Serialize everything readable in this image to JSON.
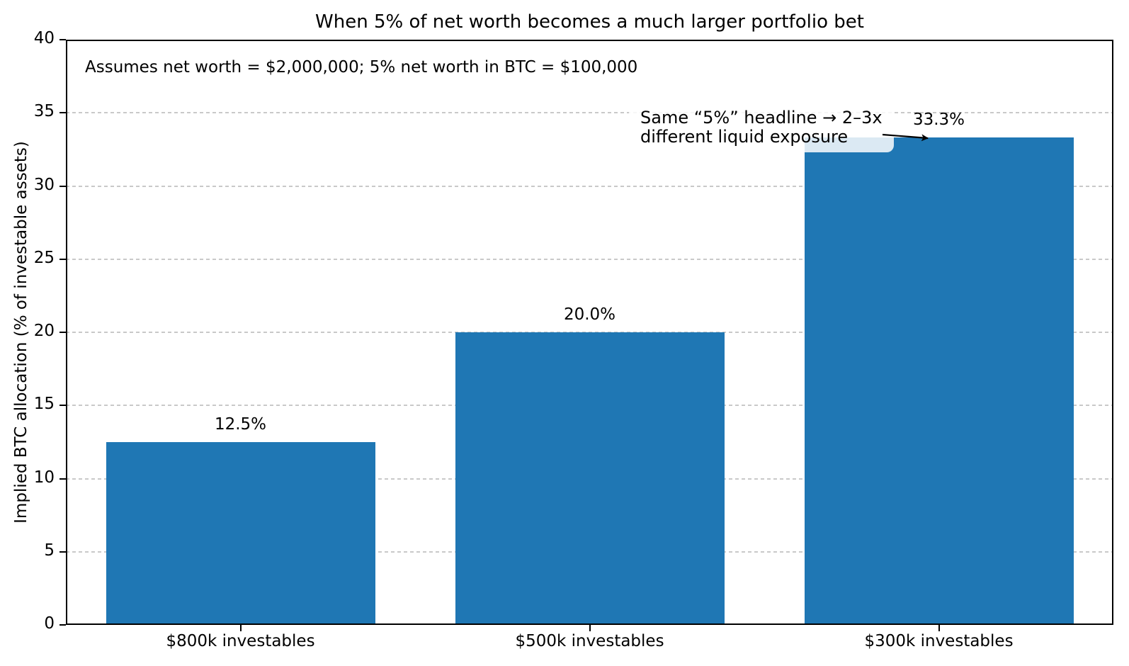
{
  "chart_data": {
    "type": "bar",
    "title": "When 5% of net worth becomes a much larger portfolio bet",
    "note": "Assumes net worth = $2,000,000; 5% net worth in BTC = $100,000",
    "ylabel": "Implied BTC allocation (% of investable assets)",
    "xlabel": "",
    "categories": [
      "$800k investables",
      "$500k investables",
      "$300k investables"
    ],
    "values": [
      12.5,
      20.0,
      33.3
    ],
    "bar_value_labels": [
      "12.5%",
      "20.0%",
      "33.3%"
    ],
    "ylim": [
      0,
      40
    ],
    "yticks": [
      0,
      5,
      10,
      15,
      20,
      25,
      30,
      35,
      40
    ],
    "grid": "horizontal dashed gridlines at y ticks",
    "legend_position": "none",
    "bar_color": "#1f77b4",
    "gridline_color": "#c9c9c9",
    "annotation": {
      "line1": "Same “5%” headline → 2–3x",
      "line2": "different liquid exposure",
      "target": "top of $300k investables bar (33.3%)"
    }
  }
}
